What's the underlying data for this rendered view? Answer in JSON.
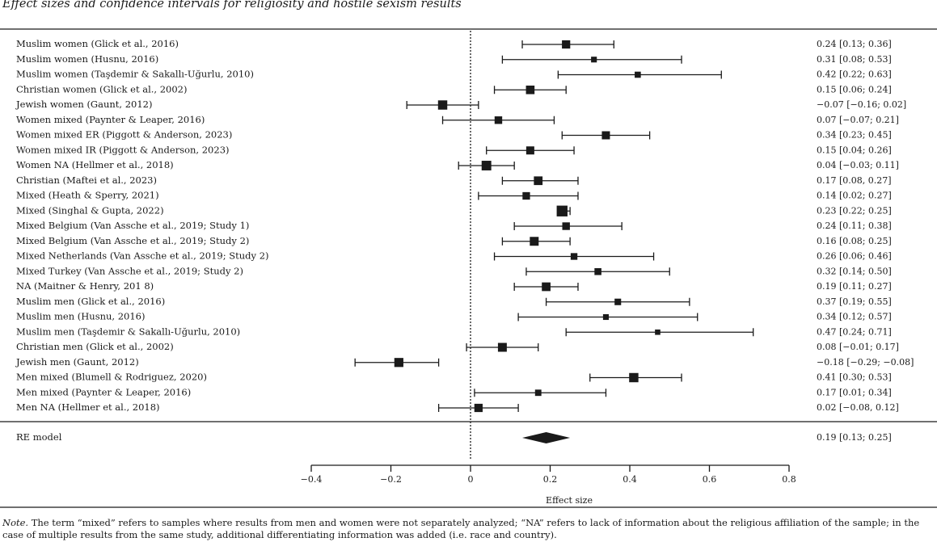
{
  "title": "Effect sizes and confidence intervals for religiosity and hostile sexism results",
  "note": {
    "label": "Note.",
    "text": "The term “mixed” refers to samples where results from men and women were not separately analyzed; “NA” refers to lack of information about the religious affiliation of the sample; in the case of multiple results from the same study, additional differentiating information was added (i.e. race and country)."
  },
  "chart_data": {
    "type": "forest",
    "xlabel": "Effect size",
    "xlim": [
      -0.4,
      0.8
    ],
    "ticks": [
      -0.4,
      -0.2,
      0,
      0.2,
      0.4,
      0.6,
      0.8
    ],
    "tick_labels": [
      "−0.4",
      "−0.2",
      "0",
      "0.2",
      "0.4",
      "0.6",
      "0.8"
    ],
    "reference_line": 0,
    "studies": [
      {
        "label": "Muslim women (Glick et al., 2016)",
        "est": 0.24,
        "lo": 0.13,
        "hi": 0.36,
        "text": "0.24 [0.13; 0.36]",
        "weight": 0.52
      },
      {
        "label": "Muslim women (Husnu, 2016)",
        "est": 0.31,
        "lo": 0.08,
        "hi": 0.53,
        "text": "0.31 [0.08; 0.53]",
        "weight": 0.26
      },
      {
        "label": "Muslim women (Taşdemir & Sakallı-Uğurlu, 2010)",
        "est": 0.42,
        "lo": 0.22,
        "hi": 0.63,
        "text": "0.42 [0.22; 0.63]",
        "weight": 0.3
      },
      {
        "label": "Christian women (Glick et al., 2002)",
        "est": 0.15,
        "lo": 0.06,
        "hi": 0.24,
        "text": "0.15 [0.06; 0.24]",
        "weight": 0.55
      },
      {
        "label": "Jewish women (Gaunt, 2012)",
        "est": -0.07,
        "lo": -0.16,
        "hi": 0.02,
        "text": "−0.07 [−0.16; 0.02]",
        "weight": 0.62
      },
      {
        "label": "Women mixed (Paynter & Leaper, 2016)",
        "est": 0.07,
        "lo": -0.07,
        "hi": 0.21,
        "text": "0.07 [−0.07; 0.21]",
        "weight": 0.45
      },
      {
        "label": "Women mixed ER (Piggott & Anderson, 2023)",
        "est": 0.34,
        "lo": 0.23,
        "hi": 0.45,
        "text": "0.34 [0.23; 0.45]",
        "weight": 0.5
      },
      {
        "label": "Women mixed IR (Piggott & Anderson, 2023)",
        "est": 0.15,
        "lo": 0.04,
        "hi": 0.26,
        "text": "0.15 [0.04; 0.26]",
        "weight": 0.5
      },
      {
        "label": "Women NA (Hellmer et al., 2018)",
        "est": 0.04,
        "lo": -0.03,
        "hi": 0.11,
        "text": "0.04 [−0.03; 0.11]",
        "weight": 0.66
      },
      {
        "label": "Christian (Maftei et al., 2023)",
        "est": 0.17,
        "lo": 0.08,
        "hi": 0.27,
        "text": "0.17 [0.08, 0.27]",
        "weight": 0.56
      },
      {
        "label": "Mixed (Heath & Sperry, 2021)",
        "est": 0.14,
        "lo": 0.02,
        "hi": 0.27,
        "text": "0.14 [0.02; 0.27]",
        "weight": 0.44
      },
      {
        "label": "Mixed (Singhal & Gupta, 2022)",
        "est": 0.23,
        "lo": 0.22,
        "hi": 0.25,
        "text": "0.23 [0.22; 0.25]",
        "weight": 0.78
      },
      {
        "label": "Mixed Belgium (Van Assche et al., 2019; Study 1)",
        "est": 0.24,
        "lo": 0.11,
        "hi": 0.38,
        "text": "0.24 [0.11; 0.38]",
        "weight": 0.45
      },
      {
        "label": "Mixed Belgium (Van Assche et al., 2019; Study 2)",
        "est": 0.16,
        "lo": 0.08,
        "hi": 0.25,
        "text": "0.16 [0.08; 0.25]",
        "weight": 0.58
      },
      {
        "label": "Mixed Netherlands (Van Assche et al., 2019; Study 2)",
        "est": 0.26,
        "lo": 0.06,
        "hi": 0.46,
        "text": "0.26 [0.06; 0.46]",
        "weight": 0.36
      },
      {
        "label": "Mixed Turkey (Van Assche et al., 2019; Study 2)",
        "est": 0.32,
        "lo": 0.14,
        "hi": 0.5,
        "text": "0.32 [0.14; 0.50]",
        "weight": 0.38
      },
      {
        "label": "NA (Maitner & Henry, 201 8)",
        "est": 0.19,
        "lo": 0.11,
        "hi": 0.27,
        "text": "0.19 [0.11; 0.27]",
        "weight": 0.56
      },
      {
        "label": "Muslim men (Glick et al., 2016)",
        "est": 0.37,
        "lo": 0.19,
        "hi": 0.55,
        "text": "0.37 [0.19; 0.55]",
        "weight": 0.34
      },
      {
        "label": "Muslim men (Husnu, 2016)",
        "est": 0.34,
        "lo": 0.12,
        "hi": 0.57,
        "text": "0.34 [0.12; 0.57]",
        "weight": 0.26
      },
      {
        "label": "Muslim men (Taşdemir & Sakallı-Uğurlu, 2010)",
        "est": 0.47,
        "lo": 0.24,
        "hi": 0.71,
        "text": "0.47 [0.24; 0.71]",
        "weight": 0.22
      },
      {
        "label": "Christian men (Glick et al., 2002)",
        "est": 0.08,
        "lo": -0.01,
        "hi": 0.17,
        "text": "0.08 [−0.01; 0.17]",
        "weight": 0.58
      },
      {
        "label": "Jewish men (Gaunt, 2012)",
        "est": -0.18,
        "lo": -0.29,
        "hi": -0.08,
        "text": "−0.18 [−0.29; −0.08]",
        "weight": 0.6
      },
      {
        "label": "Men mixed (Blumell & Rodriguez, 2020)",
        "est": 0.41,
        "lo": 0.3,
        "hi": 0.53,
        "text": "0.41 [0.30; 0.53]",
        "weight": 0.62
      },
      {
        "label": "Men mixed (Paynter & Leaper, 2016)",
        "est": 0.17,
        "lo": 0.01,
        "hi": 0.34,
        "text": "0.17 [0.01; 0.34]",
        "weight": 0.32
      },
      {
        "label": "Men NA (Hellmer et al., 2018)",
        "est": 0.02,
        "lo": -0.08,
        "hi": 0.12,
        "text": "0.02 [−0.08, 0.12]",
        "weight": 0.52
      }
    ],
    "summary": {
      "label": "RE model",
      "est": 0.19,
      "lo": 0.13,
      "hi": 0.25,
      "text": "0.19 [0.13; 0.25]"
    }
  },
  "colors": {
    "ink": "#1a1a1a",
    "background": "#ffffff"
  }
}
